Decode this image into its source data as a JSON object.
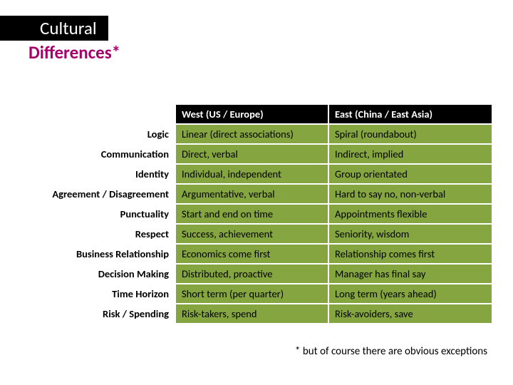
{
  "title": {
    "line1": "Cultural",
    "line2": "Differences*"
  },
  "table": {
    "columns": [
      "West (US / Europe)",
      "East (China / East Asia)"
    ],
    "rows": [
      {
        "label": "Logic",
        "west": "Linear (direct associations)",
        "east": "Spiral (roundabout)"
      },
      {
        "label": "Communication",
        "west": "Direct, verbal",
        "east": "Indirect, implied"
      },
      {
        "label": "Identity",
        "west": "Individual, independent",
        "east": "Group orientated"
      },
      {
        "label": "Agreement / Disagreement",
        "west": "Argumentative, verbal",
        "east": "Hard to say no, non-verbal"
      },
      {
        "label": "Punctuality",
        "west": "Start and end on time",
        "east": "Appointments flexible"
      },
      {
        "label": "Respect",
        "west": "Success, achievement",
        "east": "Seniority, wisdom"
      },
      {
        "label": "Business Relationship",
        "west": "Economics come first",
        "east": "Relationship comes first"
      },
      {
        "label": "Decision Making",
        "west": "Distributed, proactive",
        "east": "Manager has final say"
      },
      {
        "label": "Time Horizon",
        "west": "Short term (per quarter)",
        "east": "Long term (years ahead)"
      },
      {
        "label": "Risk / Spending",
        "west": "Risk-takers, spend",
        "east": "Risk-avoiders, save"
      }
    ]
  },
  "footnote": "* but of course there are obvious exceptions",
  "colors": {
    "title_box_bg": "#000000",
    "title_box_fg": "#ffffff",
    "accent": "#a6006b",
    "header_bg": "#000000",
    "header_fg": "#ffffff",
    "cell_bg": "#84a53f",
    "cell_fg": "#000000",
    "border": "#ffffff"
  }
}
